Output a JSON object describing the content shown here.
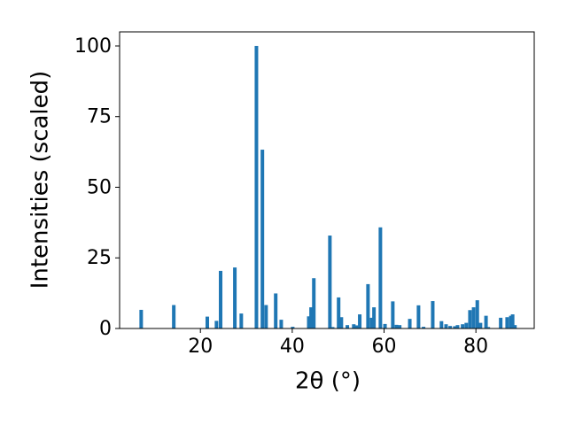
{
  "chart_data": {
    "type": "bar",
    "color": "#1f77b4",
    "x_label": "2θ (°)",
    "y_label": "Intensities (scaled)",
    "x": [
      7.1,
      14.2,
      21.5,
      23.5,
      24.4,
      27.5,
      28.9,
      32.2,
      33.5,
      34.3,
      36.4,
      37.6,
      40.1,
      43.6,
      44.1,
      44.7,
      48.2,
      48.8,
      50.1,
      50.7,
      52.0,
      53.4,
      54.0,
      54.7,
      56.5,
      57.3,
      57.8,
      59.2,
      60.2,
      61.9,
      62.7,
      63.4,
      65.6,
      67.5,
      68.6,
      70.6,
      72.5,
      73.5,
      74.4,
      75.4,
      76.0,
      77.1,
      77.9,
      78.7,
      79.5,
      80.3,
      81.0,
      82.2,
      82.7,
      85.4,
      86.8,
      87.6,
      88.0,
      88.5
    ],
    "values": [
      6.6,
      8.3,
      4.2,
      2.7,
      20.4,
      21.6,
      5.3,
      100,
      63.3,
      8.3,
      12.4,
      3.1,
      0.6,
      4.3,
      7.5,
      17.8,
      32.9,
      0.5,
      11,
      4,
      1.2,
      1.5,
      1.1,
      5,
      15.7,
      3.8,
      7.5,
      35.8,
      1.6,
      9.6,
      1.3,
      1.2,
      3.4,
      8.2,
      0.6,
      9.7,
      2.6,
      1.5,
      0.9,
      0.8,
      1.2,
      1.5,
      2,
      6.5,
      7.5,
      10,
      2,
      4.5,
      0.5,
      3.8,
      4,
      4.5,
      5,
      1.2
    ],
    "xlim": [
      2.4,
      92.7
    ],
    "ylim": [
      0,
      105
    ],
    "xticks": [
      20,
      40,
      60,
      80
    ],
    "yticks": [
      0,
      25,
      50,
      75,
      100
    ]
  }
}
